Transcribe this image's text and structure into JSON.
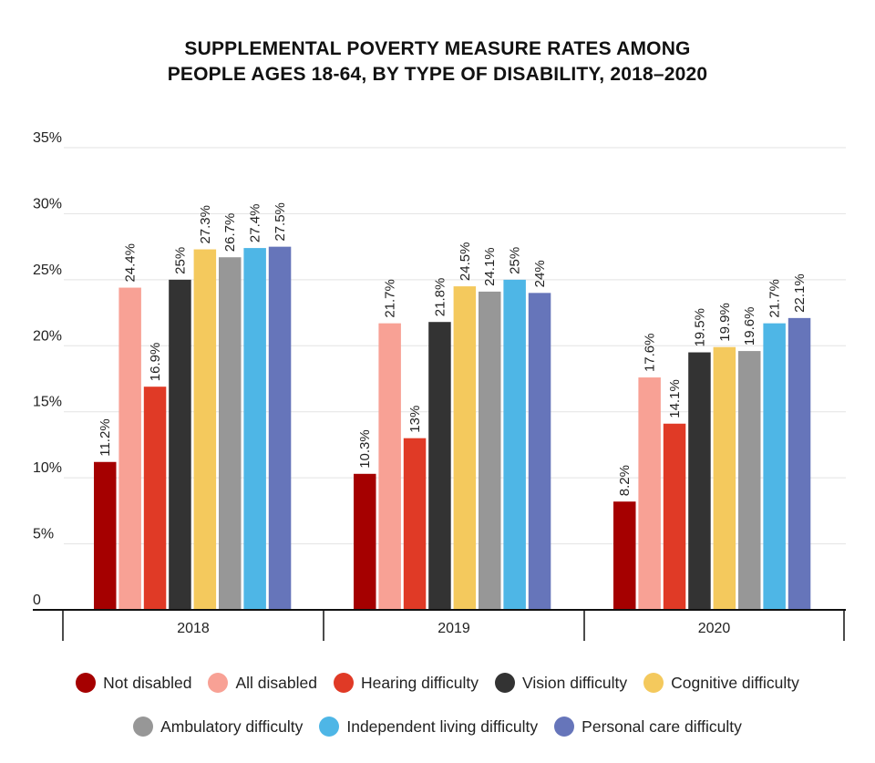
{
  "chart_data": {
    "type": "bar",
    "title_line1": "SUPPLEMENTAL POVERTY MEASURE RATES AMONG",
    "title_line2": "PEOPLE AGES 18-64, BY TYPE OF DISABILITY, 2018–2020",
    "categories": [
      "2018",
      "2019",
      "2020"
    ],
    "y_ticks": [
      "0",
      "5%",
      "10%",
      "15%",
      "20%",
      "25%",
      "30%",
      "35%"
    ],
    "ylim": [
      0,
      35
    ],
    "grid": true,
    "legend_position": "bottom",
    "series": [
      {
        "name": "Not disabled",
        "color": "#a50000",
        "values": [
          11.2,
          10.3,
          8.2
        ],
        "labels": [
          "11.2%",
          "10.3%",
          "8.2%"
        ]
      },
      {
        "name": "All disabled",
        "color": "#f8a195",
        "values": [
          24.4,
          21.7,
          17.6
        ],
        "labels": [
          "24.4%",
          "21.7%",
          "17.6%"
        ]
      },
      {
        "name": "Hearing difficulty",
        "color": "#e03a26",
        "values": [
          16.9,
          13,
          14.1
        ],
        "labels": [
          "16.9%",
          "13%",
          "14.1%"
        ]
      },
      {
        "name": "Vision difficulty",
        "color": "#333333",
        "values": [
          25,
          21.8,
          19.5
        ],
        "labels": [
          "25%",
          "21.8%",
          "19.5%"
        ]
      },
      {
        "name": "Cognitive difficulty",
        "color": "#f4c95d",
        "values": [
          27.3,
          24.5,
          19.9
        ],
        "labels": [
          "27.3%",
          "24.5%",
          "19.9%"
        ]
      },
      {
        "name": "Ambulatory difficulty",
        "color": "#979797",
        "values": [
          26.7,
          24.1,
          19.6
        ],
        "labels": [
          "26.7%",
          "24.1%",
          "19.6%"
        ]
      },
      {
        "name": "Independent living difficulty",
        "color": "#4eb6e6",
        "values": [
          27.4,
          25,
          21.7
        ],
        "labels": [
          "27.4%",
          "25%",
          "21.7%"
        ]
      },
      {
        "name": "Personal care difficulty",
        "color": "#6675ba",
        "values": [
          27.5,
          24,
          22.1
        ],
        "labels": [
          "27.5%",
          "24%",
          "22.1%"
        ]
      }
    ]
  }
}
